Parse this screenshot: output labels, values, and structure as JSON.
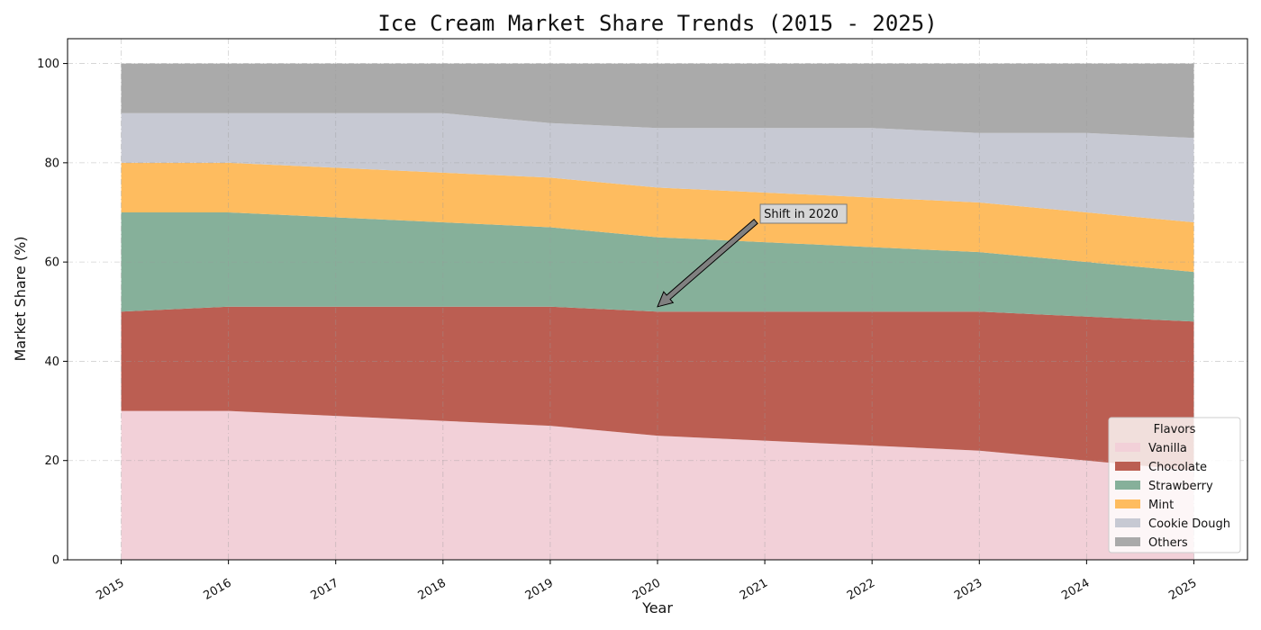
{
  "chart_data": {
    "type": "area",
    "stacked": true,
    "title": "Ice Cream Market Share Trends (2015 - 2025)",
    "xlabel": "Year",
    "ylabel": "Market Share (%)",
    "x": [
      2015,
      2016,
      2017,
      2018,
      2019,
      2020,
      2021,
      2022,
      2023,
      2024,
      2025
    ],
    "xlim": [
      2014.5,
      2025.5
    ],
    "ylim": [
      0,
      105
    ],
    "yticks": [
      0,
      20,
      40,
      60,
      80,
      100
    ],
    "grid": true,
    "legend": {
      "title": "Flavors",
      "placement": "lower-right"
    },
    "series": [
      {
        "name": "Vanilla",
        "color": "#f2d0d8",
        "values": [
          30,
          30,
          29,
          28,
          27,
          25,
          24,
          23,
          22,
          20,
          18
        ]
      },
      {
        "name": "Chocolate",
        "color": "#bb5e52",
        "values": [
          20,
          21,
          22,
          23,
          24,
          25,
          26,
          27,
          28,
          29,
          30
        ]
      },
      {
        "name": "Strawberry",
        "color": "#86b09a",
        "values": [
          20,
          19,
          18,
          17,
          16,
          15,
          14,
          13,
          12,
          11,
          10
        ]
      },
      {
        "name": "Mint",
        "color": "#febc5f",
        "values": [
          10,
          10,
          10,
          10,
          10,
          10,
          10,
          10,
          10,
          10,
          10
        ]
      },
      {
        "name": "Cookie Dough",
        "color": "#c7c9d3",
        "values": [
          10,
          10,
          11,
          12,
          11,
          12,
          13,
          14,
          14,
          16,
          17
        ]
      },
      {
        "name": "Others",
        "color": "#aaaaaa",
        "values": [
          10,
          10,
          10,
          10,
          12,
          13,
          13,
          13,
          14,
          14,
          15
        ]
      }
    ],
    "annotations": [
      {
        "text": "Shift in 2020",
        "x": 2020,
        "y": 51,
        "text_x": 2021,
        "text_y": 70
      }
    ]
  }
}
